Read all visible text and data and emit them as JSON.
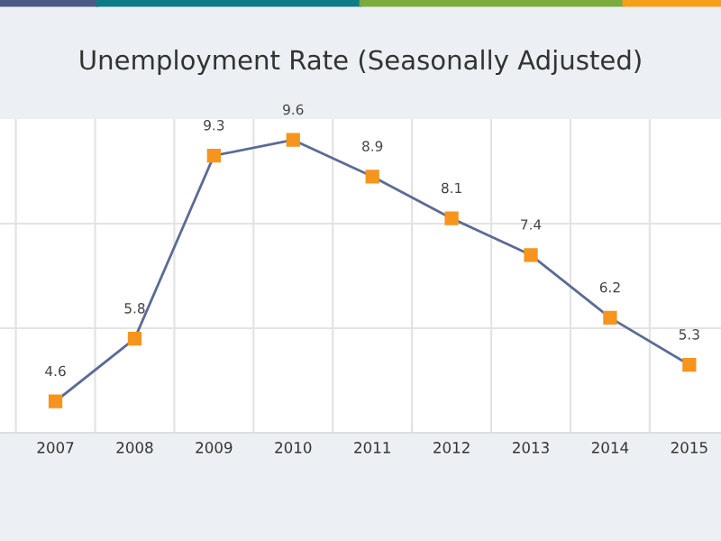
{
  "chart_data": {
    "type": "line",
    "title": "Unemployment Rate (Seasonally Adjusted)",
    "x": [
      2007,
      2008,
      2009,
      2010,
      2011,
      2012,
      2013,
      2014,
      2015
    ],
    "series": [
      {
        "color": "#5b6b95",
        "values": [
          4.6,
          5.8,
          9.3,
          9.6,
          8.9,
          8.1,
          7.4,
          6.2,
          5.3
        ],
        "value_labels": [
          "4.6",
          "5.8",
          "9.3",
          "9.6",
          "8.9",
          "8.1",
          "7.4",
          "6.2",
          "5.3"
        ]
      }
    ],
    "marker": "square",
    "line_style": "solid",
    "xlim": [
      2006.3,
      2015.4
    ],
    "xticks": [
      {
        "value": 2006.5,
        "label": null
      },
      {
        "value": 2007,
        "label": "2007"
      },
      {
        "value": 2007.5,
        "label": null
      },
      {
        "value": 2008,
        "label": "2008"
      },
      {
        "value": 2008.5,
        "label": null
      },
      {
        "value": 2009,
        "label": "2009"
      },
      {
        "value": 2009.5,
        "label": null
      },
      {
        "value": 2010,
        "label": "2010"
      },
      {
        "value": 2010.5,
        "label": null
      },
      {
        "value": 2011,
        "label": "2011"
      },
      {
        "value": 2011.5,
        "label": null
      },
      {
        "value": 2012,
        "label": "2012"
      },
      {
        "value": 2012.5,
        "label": null
      },
      {
        "value": 2013,
        "label": "2013"
      },
      {
        "value": 2013.5,
        "label": null
      },
      {
        "value": 2014,
        "label": "2014"
      },
      {
        "value": 2014.5,
        "label": null
      },
      {
        "value": 2015,
        "label": "2015"
      }
    ],
    "ylim": [
      4,
      10
    ],
    "yticks": [
      {
        "value": 6,
        "label": null
      },
      {
        "value": 8,
        "label": null
      }
    ],
    "tick_labels": "x",
    "grid": true
  }
}
